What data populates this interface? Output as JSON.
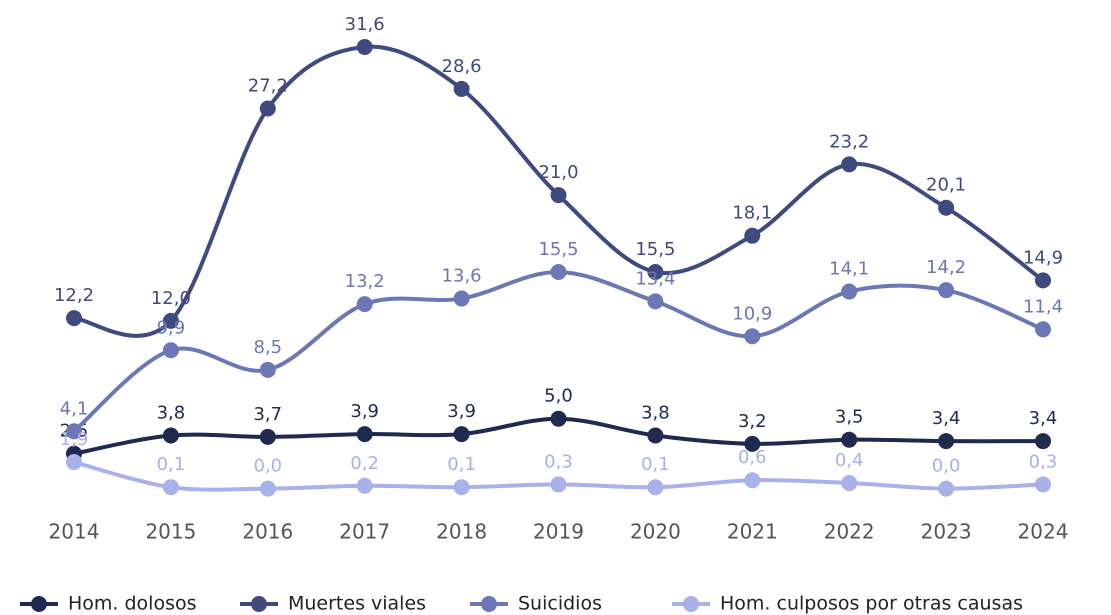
{
  "chart_data": {
    "type": "line",
    "categories": [
      "2014",
      "2015",
      "2016",
      "2017",
      "2018",
      "2019",
      "2020",
      "2021",
      "2022",
      "2023",
      "2024"
    ],
    "series": [
      {
        "name": "Hom. dolosos",
        "color": "#1f2a4f",
        "values": [
          2.5,
          3.8,
          3.7,
          3.9,
          3.9,
          5.0,
          3.8,
          3.2,
          3.5,
          3.4,
          3.4
        ],
        "value_labels": [
          "2,5",
          "3,8",
          "3,7",
          "3,9",
          "3,9",
          "5,0",
          "3,8",
          "3,2",
          "3,5",
          "3,4",
          "3,4"
        ]
      },
      {
        "name": "Muertes viales",
        "color": "#3f4a7f",
        "values": [
          12.2,
          12.0,
          27.2,
          31.6,
          28.6,
          21.0,
          15.5,
          18.1,
          23.2,
          20.1,
          14.9
        ],
        "value_labels": [
          "12,2",
          "12,0",
          "27,2",
          "31,6",
          "28,6",
          "21,0",
          "15,5",
          "18,1",
          "23,2",
          "20,1",
          "14,9"
        ]
      },
      {
        "name": "Suicidios",
        "color": "#6c78b5",
        "values": [
          4.1,
          9.9,
          8.5,
          13.2,
          13.6,
          15.5,
          13.4,
          10.9,
          14.1,
          14.2,
          11.4
        ],
        "value_labels": [
          "4,1",
          "9,9",
          "8,5",
          "13,2",
          "13,6",
          "15,5",
          "13,4",
          "10,9",
          "14,1",
          "14,2",
          "11,4"
        ]
      },
      {
        "name": "Hom. culposos por otras causas",
        "color": "#a9b1ea",
        "values": [
          1.9,
          0.1,
          0.0,
          0.2,
          0.1,
          0.3,
          0.1,
          0.6,
          0.4,
          0.0,
          0.3
        ],
        "value_labels": [
          "1,9",
          "0,1",
          "0,0",
          "0,2",
          "0,1",
          "0,3",
          "0,1",
          "0,6",
          "0,4",
          "0,0",
          "0,3"
        ]
      }
    ]
  }
}
